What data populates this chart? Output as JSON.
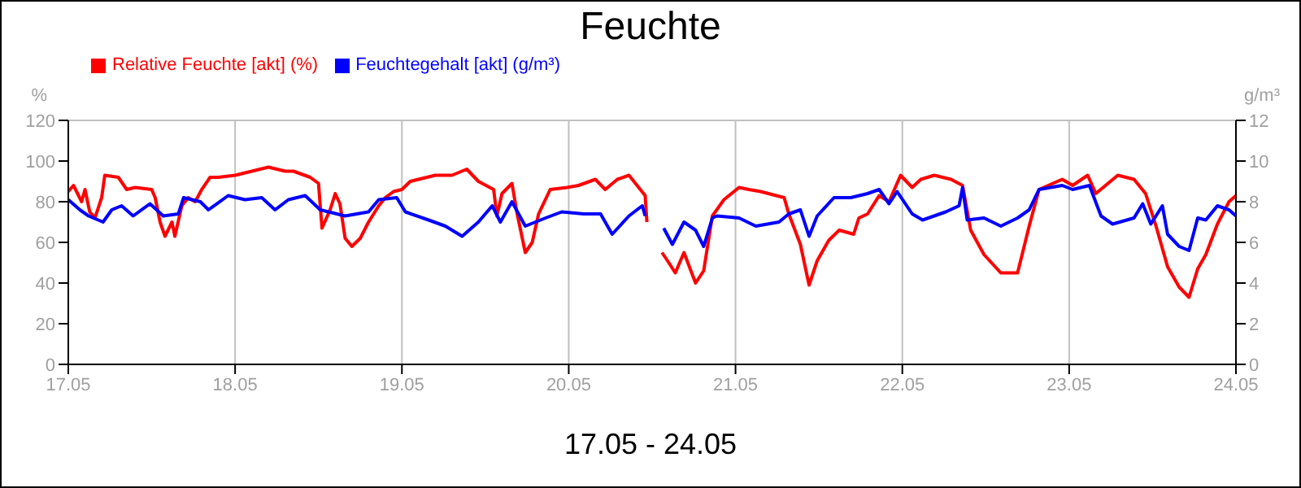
{
  "chart_data": {
    "type": "line",
    "title": "Feuchte",
    "xlabel": "17.05 - 24.05",
    "ylabel": "%",
    "y2label": "g/m³",
    "xlim": [
      "--05-17",
      "--05-24"
    ],
    "xticks": [
      {
        "value": "--05-17",
        "label": "17.05"
      },
      {
        "value": "--05-18",
        "label": "18.05"
      },
      {
        "value": "--05-19",
        "label": "19.05"
      },
      {
        "value": "--05-20",
        "label": "20.05"
      },
      {
        "value": "--05-21",
        "label": "21.05"
      },
      {
        "value": "--05-22",
        "label": "22.05"
      },
      {
        "value": "--05-23",
        "label": "23.05"
      },
      {
        "value": "--05-24",
        "label": "24.05"
      }
    ],
    "ylim": [
      0,
      120
    ],
    "yticks": [
      0,
      20,
      40,
      60,
      80,
      100,
      120
    ],
    "y2lim": [
      0,
      12
    ],
    "y2ticks": [
      0,
      2,
      4,
      6,
      8,
      10,
      12
    ],
    "grid": true,
    "legend": "top left",
    "marker": "none",
    "line_style": "solid",
    "series": [
      {
        "name": "Relative Feuchte [akt] (%)",
        "color": "#ff0000",
        "x": [
          "--05-17T00:00",
          "--05-17T00:45",
          "--05-17T01:55",
          "--05-17T02:24",
          "--05-17T03:05",
          "--05-17T03:50",
          "--05-17T04:48",
          "--05-17T05:15",
          "--05-17T07:12",
          "--05-17T08:24",
          "--05-17T09:36",
          "--05-17T12:00",
          "--05-17T12:30",
          "--05-17T13:12",
          "--05-17T13:55",
          "--05-17T14:55",
          "--05-17T15:20",
          "--05-17T16:20",
          "--05-17T17:15",
          "--05-17T18:15",
          "--05-17T19:12",
          "--05-17T20:24",
          "--05-17T21:36",
          "--05-18T00:00",
          "--05-18T02:24",
          "--05-18T04:48",
          "--05-18T07:12",
          "--05-18T08:24",
          "--05-18T10:48",
          "--05-18T12:00",
          "--05-18T12:30",
          "--05-18T13:40",
          "--05-18T14:24",
          "--05-18T15:05",
          "--05-18T15:50",
          "--05-18T16:48",
          "--05-18T18:00",
          "--05-18T19:12",
          "--05-18T20:40",
          "--05-18T21:36",
          "--05-18T22:48",
          "--05-19T00:00",
          "--05-19T01:12",
          "--05-19T04:48",
          "--05-19T07:12",
          "--05-19T09:20",
          "--05-19T11:00",
          "--05-19T13:12",
          "--05-19T13:40",
          "--05-19T14:24",
          "--05-19T15:50",
          "--05-19T16:35",
          "--05-19T17:45",
          "--05-19T18:45",
          "--05-19T19:40",
          "--05-19T21:20",
          "--05-19T23:45",
          "--05-20T01:25",
          "--05-20T03:50",
          "--05-20T05:15",
          "--05-20T07:00",
          "--05-20T08:40",
          "--05-20T09:50",
          "--05-20T11:00",
          "--05-20T11:15",
          "--05-20T12:00",
          "--05-20T13:25",
          "--05-20T14:24",
          "--05-20T15:20",
          "--05-20T16:35",
          "--05-20T18:15",
          "--05-20T19:25",
          "--05-20T20:40",
          "--05-20T22:20",
          "--05-21T00:30",
          "--05-21T01:55",
          "--05-21T03:36",
          "--05-21T07:00",
          "--05-21T07:40",
          "--05-21T09:20",
          "--05-21T10:35",
          "--05-21T11:45",
          "--05-21T13:25",
          "--05-21T14:55",
          "--05-21T17:00",
          "--05-21T17:45",
          "--05-21T19:00",
          "--05-21T20:40",
          "--05-21T22:05",
          "--05-21T23:45",
          "--05-22T01:25",
          "--05-22T02:40",
          "--05-22T04:35",
          "--05-22T07:00",
          "--05-22T08:40",
          "--05-22T09:50",
          "--05-22T11:45",
          "--05-22T14:10",
          "--05-22T16:35",
          "--05-22T18:15",
          "--05-22T19:40",
          "--05-22T23:00",
          "--05-23T00:30",
          "--05-23T02:40",
          "--05-23T03:50",
          "--05-23T07:00",
          "--05-23T09:20",
          "--05-23T11:00",
          "--05-23T12:30",
          "--05-23T14:10",
          "--05-23T15:50",
          "--05-23T17:15",
          "--05-23T18:30",
          "--05-23T19:40",
          "--05-23T21:20",
          "--05-23T23:00",
          "--05-24T00:00"
        ],
        "values": [
          85,
          88,
          80,
          86,
          75,
          72,
          82,
          93,
          92,
          86,
          87,
          86,
          82,
          70,
          63,
          70,
          63,
          78,
          82,
          80,
          86,
          92,
          92,
          93,
          95,
          97,
          95,
          95,
          92,
          89,
          67,
          76,
          84,
          79,
          62,
          58,
          62,
          70,
          78,
          82,
          85,
          86,
          90,
          93,
          93,
          96,
          90,
          86,
          73,
          84,
          89,
          74,
          55,
          60,
          74,
          86,
          87,
          88,
          91,
          86,
          91,
          93,
          88,
          83,
          70,
          null,
          55,
          50,
          45,
          55,
          40,
          46,
          73,
          81,
          87,
          86,
          85,
          82,
          74,
          59,
          39,
          51,
          61,
          66,
          64,
          72,
          74,
          83,
          80,
          93,
          87,
          91,
          93,
          91,
          88,
          66,
          54,
          45,
          45,
          68,
          86,
          91,
          88,
          93,
          84,
          93,
          91,
          84,
          68,
          48,
          38,
          33,
          47,
          54,
          69,
          80,
          83
        ]
      },
      {
        "name": "Feuchtegehalt [akt] (g/m³)",
        "color": "#0000ff",
        "axis": "y2",
        "x": [
          "--05-17T00:00",
          "--05-17T01:40",
          "--05-17T02:55",
          "--05-17T05:00",
          "--05-17T06:15",
          "--05-17T07:40",
          "--05-17T09:20",
          "--05-17T11:45",
          "--05-17T13:40",
          "--05-17T15:50",
          "--05-17T16:35",
          "--05-17T19:00",
          "--05-17T20:10",
          "--05-17T23:00",
          "--05-18T01:25",
          "--05-18T03:50",
          "--05-18T05:45",
          "--05-18T07:40",
          "--05-18T10:05",
          "--05-18T12:15",
          "--05-18T15:50",
          "--05-18T19:12",
          "--05-18T20:40",
          "--05-18T23:15",
          "--05-19T00:30",
          "--05-19T03:50",
          "--05-19T06:15",
          "--05-19T08:40",
          "--05-19T11:00",
          "--05-19T13:00",
          "--05-19T14:10",
          "--05-19T15:50",
          "--05-19T17:45",
          "--05-19T20:40",
          "--05-19T23:00",
          "--05-20T02:10",
          "--05-20T04:35",
          "--05-20T06:15",
          "--05-20T08:40",
          "--05-20T10:35",
          "--05-20T11:00",
          "--05-20T12:00",
          "--05-20T13:40",
          "--05-20T14:55",
          "--05-20T16:35",
          "--05-20T18:15",
          "--05-20T19:25",
          "--05-20T20:40",
          "--05-20T21:20",
          "--05-21T00:30",
          "--05-21T02:55",
          "--05-21T06:15",
          "--05-21T07:40",
          "--05-21T09:20",
          "--05-21T10:35",
          "--05-21T11:45",
          "--05-21T14:10",
          "--05-21T16:35",
          "--05-21T19:00",
          "--05-21T20:40",
          "--05-21T22:05",
          "--05-21T23:15",
          "--05-22T01:25",
          "--05-22T02:55",
          "--05-22T06:15",
          "--05-22T08:10",
          "--05-22T08:40",
          "--05-22T09:20",
          "--05-22T11:45",
          "--05-22T14:10",
          "--05-22T16:35",
          "--05-22T18:15",
          "--05-22T19:40",
          "--05-22T23:00",
          "--05-23T00:30",
          "--05-23T02:55",
          "--05-23T04:35",
          "--05-23T06:15",
          "--05-23T09:20",
          "--05-23T10:35",
          "--05-23T11:45",
          "--05-23T13:25",
          "--05-23T14:10",
          "--05-23T15:50",
          "--05-23T17:15",
          "--05-23T18:30",
          "--05-23T19:40",
          "--05-23T21:20",
          "--05-23T23:00",
          "--05-24T00:00"
        ],
        "values": [
          8.1,
          7.6,
          7.3,
          7.0,
          7.6,
          7.8,
          7.3,
          7.9,
          7.3,
          7.4,
          8.2,
          8.0,
          7.6,
          8.3,
          8.1,
          8.2,
          7.6,
          8.1,
          8.3,
          7.6,
          7.3,
          7.5,
          8.1,
          8.2,
          7.5,
          7.1,
          6.8,
          6.3,
          7.0,
          7.8,
          7.0,
          8.0,
          6.8,
          7.2,
          7.5,
          7.4,
          7.4,
          6.4,
          7.3,
          7.8,
          7.3,
          null,
          6.7,
          5.9,
          7.0,
          6.6,
          5.8,
          7.2,
          7.3,
          7.2,
          6.8,
          7.0,
          7.4,
          7.6,
          6.3,
          7.3,
          8.2,
          8.2,
          8.4,
          8.6,
          7.9,
          8.5,
          7.4,
          7.1,
          7.5,
          7.8,
          8.7,
          7.1,
          7.2,
          6.8,
          7.2,
          7.6,
          8.6,
          8.8,
          8.6,
          8.8,
          7.3,
          6.9,
          7.2,
          7.9,
          6.9,
          7.8,
          6.4,
          5.8,
          5.6,
          7.2,
          7.1,
          7.8,
          7.6,
          7.3
        ]
      }
    ]
  }
}
